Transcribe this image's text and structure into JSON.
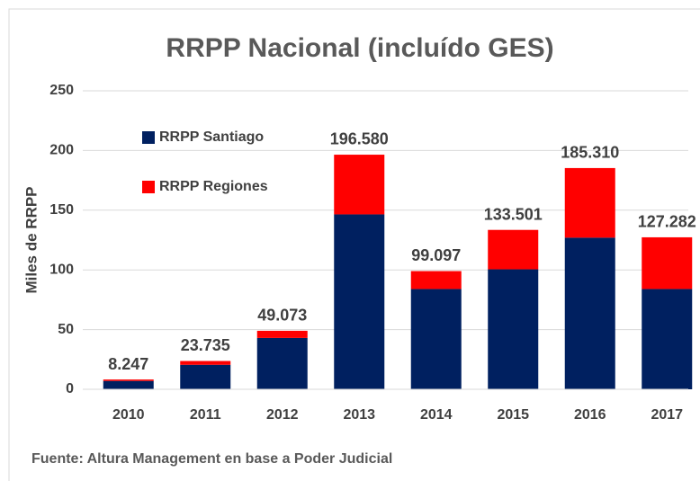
{
  "chart_data": {
    "type": "stacked_bar",
    "title": "RRPP Nacional (incluído GES)",
    "y_label": "Miles de RRPP",
    "source": "Fuente: Altura Management en base a Poder Judicial",
    "categories": [
      "2010",
      "2011",
      "2012",
      "2013",
      "2014",
      "2015",
      "2016",
      "2017"
    ],
    "series": [
      {
        "name": "RRPP Santiago",
        "color": "#002060",
        "values": [
          7,
          20.5,
          43,
          146.5,
          84,
          100.5,
          127,
          84
        ]
      },
      {
        "name": "RRPP Regiones",
        "color": "#ff0000",
        "values": [
          1.2,
          3.2,
          6,
          50,
          15,
          33,
          58.3,
          43.3
        ]
      }
    ],
    "totals": [
      8.247,
      23.735,
      49.073,
      196.58,
      99.097,
      133.501,
      185.31,
      127.282
    ],
    "value_labels": [
      "8.247",
      "23.735",
      "49.073",
      "196.580",
      "99.097",
      "133.501",
      "185.310",
      "127.282"
    ],
    "ylim": [
      0,
      250
    ],
    "yticks": [
      0,
      50,
      100,
      150,
      200,
      250
    ],
    "grid": true
  }
}
